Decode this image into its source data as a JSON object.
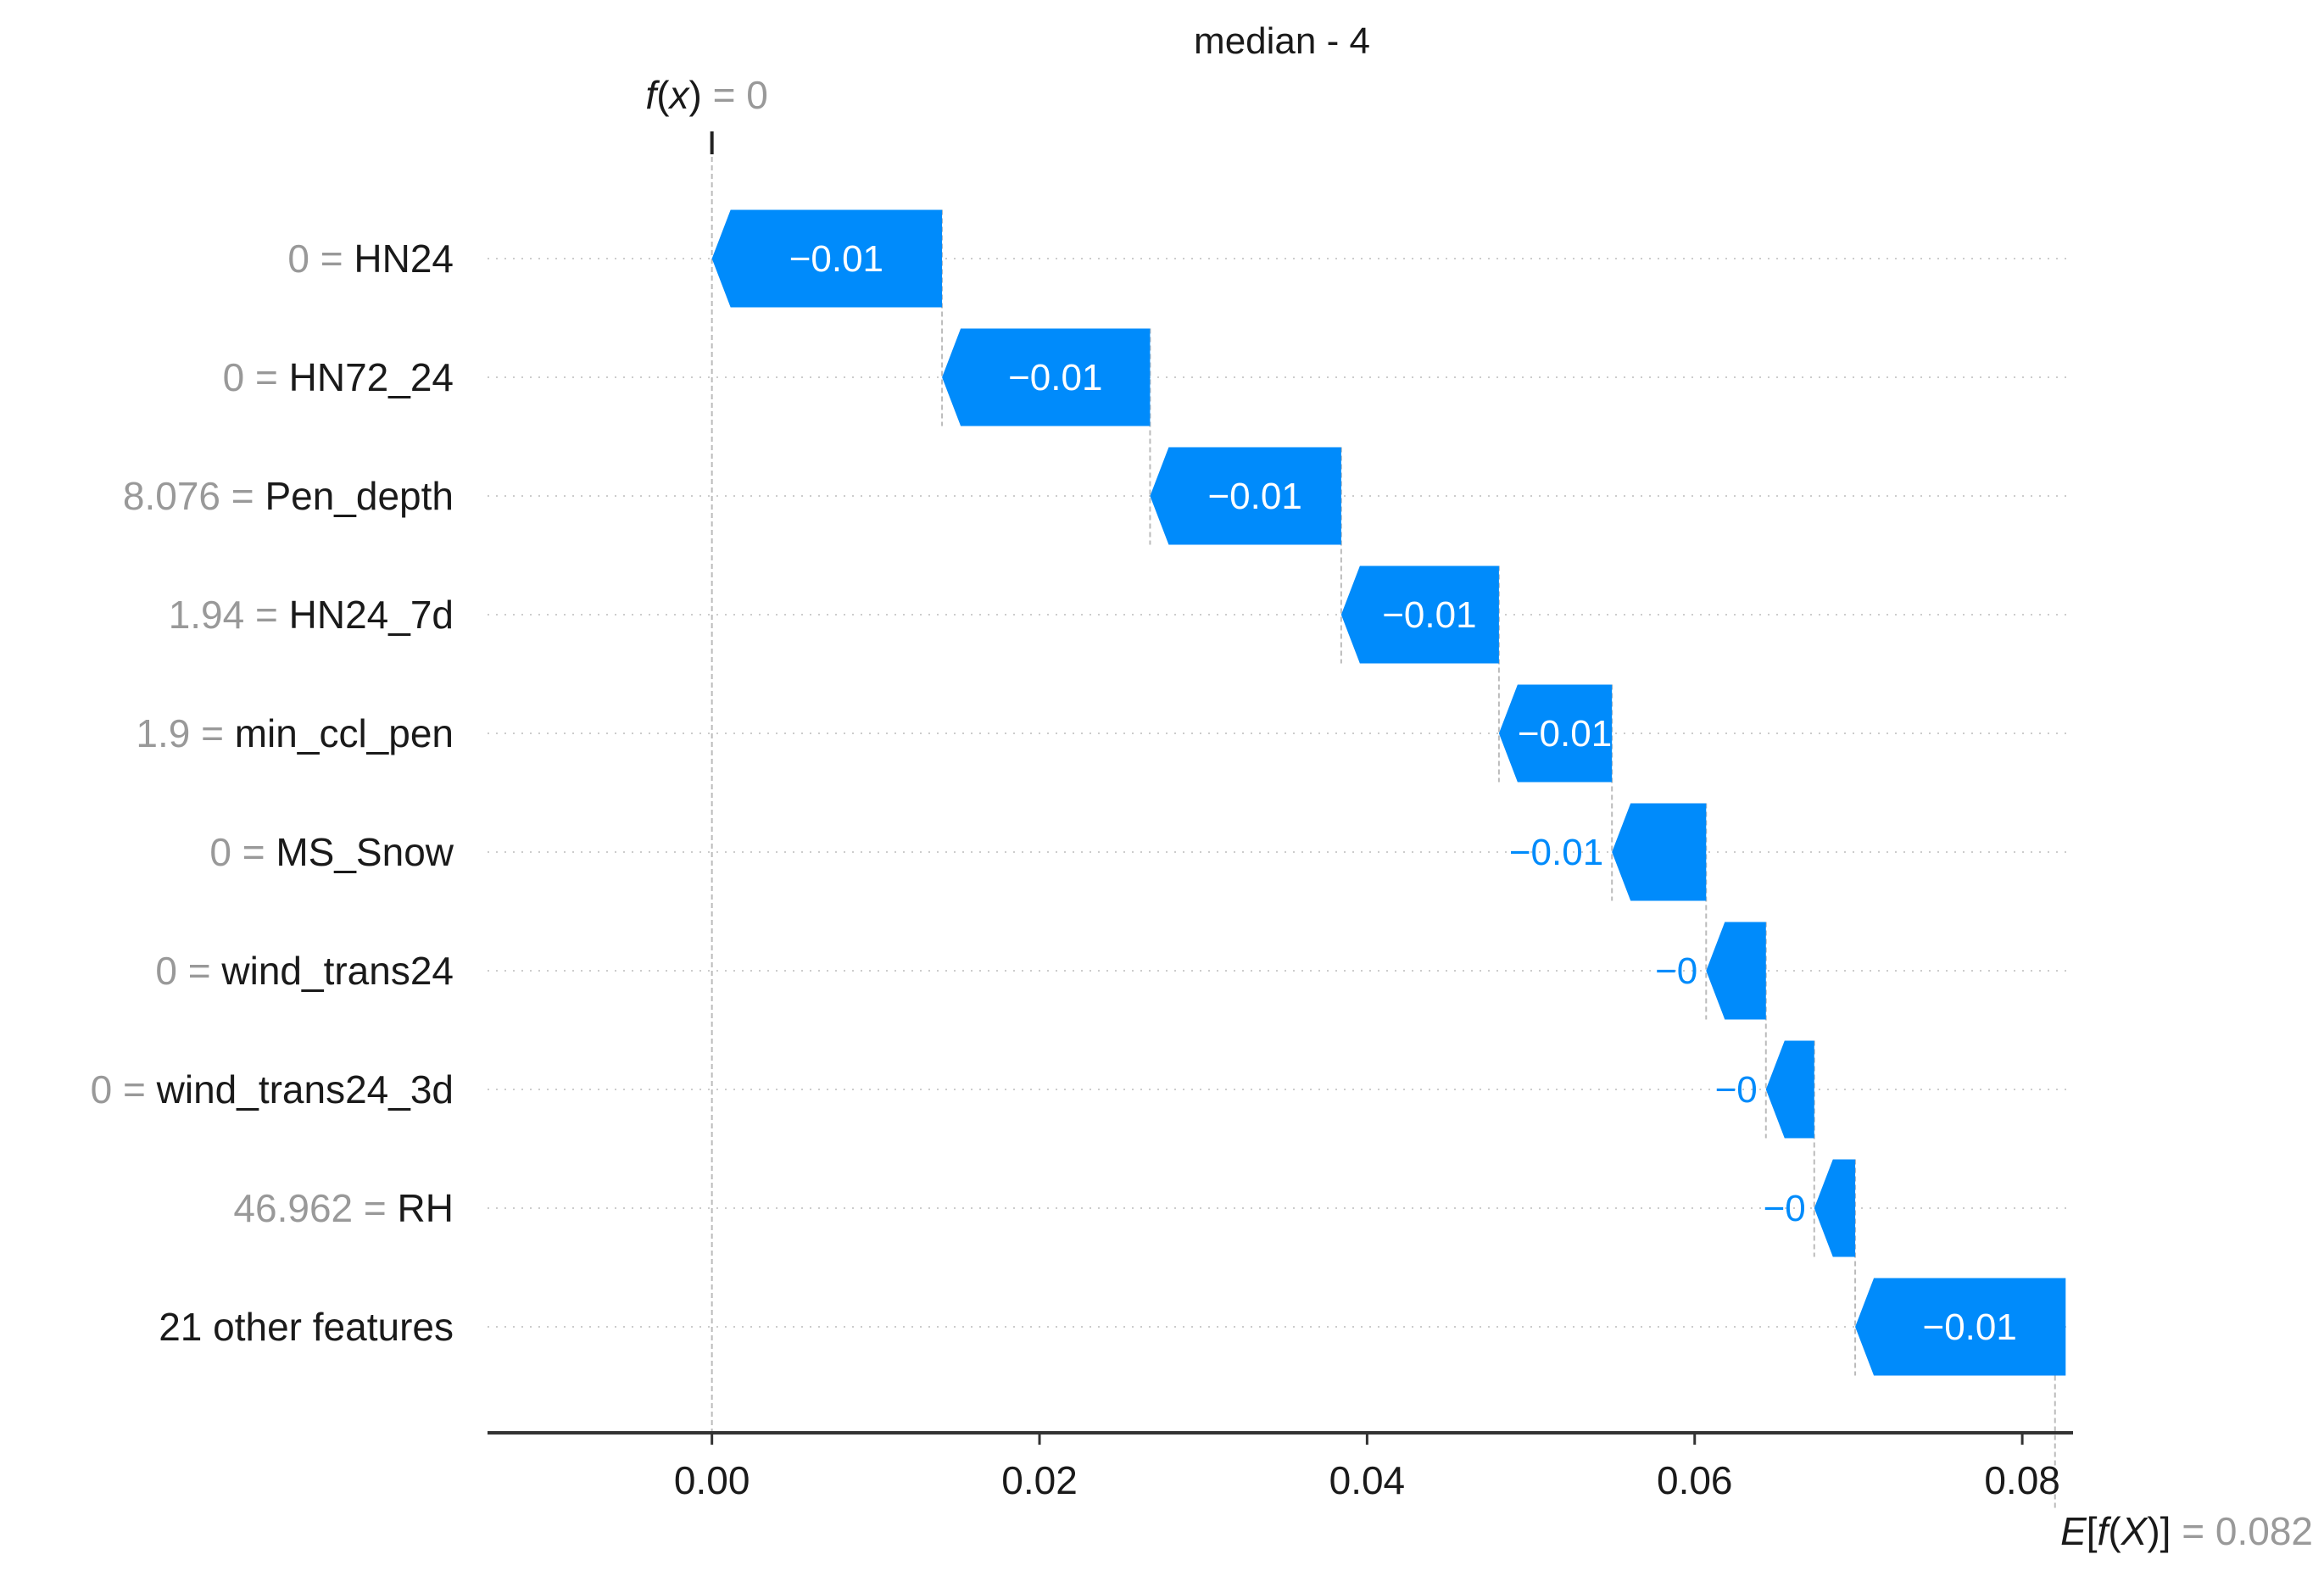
{
  "chart_data": {
    "type": "waterfall",
    "title": "median - 4",
    "fx_label": {
      "func": "f",
      "arg": "x",
      "value": "0"
    },
    "efx_label": {
      "value": "0.082"
    },
    "xlabel": "",
    "ylabel": "",
    "xlim": [
      -0.0137,
      0.0831
    ],
    "xticks": [
      0.0,
      0.02,
      0.04,
      0.06,
      0.08
    ],
    "xtick_labels": [
      "0.00",
      "0.02",
      "0.04",
      "0.06",
      "0.08"
    ],
    "grid": false,
    "base_value": 0.082,
    "output_value": 0,
    "features": [
      {
        "value": "0",
        "name": "HN24",
        "label": "−0.01",
        "start": 0.01405,
        "end": 0.0
      },
      {
        "value": "0",
        "name": "HN72_24",
        "label": "−0.01",
        "start": 0.02675,
        "end": 0.01405
      },
      {
        "value": "8.076",
        "name": "Pen_depth",
        "label": "−0.01",
        "start": 0.03842,
        "end": 0.02675
      },
      {
        "value": "1.94",
        "name": "HN24_7d",
        "label": "−0.01",
        "start": 0.04805,
        "end": 0.03842
      },
      {
        "value": "1.9",
        "name": "min_ccl_pen",
        "label": "−0.01",
        "start": 0.05495,
        "end": 0.04805
      },
      {
        "value": "0",
        "name": "MS_Snow",
        "label": "−0.01",
        "start": 0.0607,
        "end": 0.05495
      },
      {
        "value": "0",
        "name": "wind_trans24",
        "label": "−0",
        "start": 0.06435,
        "end": 0.0607
      },
      {
        "value": "0",
        "name": "wind_trans24_3d",
        "label": "−0",
        "start": 0.0673,
        "end": 0.06435
      },
      {
        "value": "46.962",
        "name": "RH",
        "label": "−0",
        "start": 0.0698,
        "end": 0.0673
      },
      {
        "value": "",
        "name": "21 other features",
        "label": "−0.01",
        "start": 0.08265,
        "end": 0.0698
      }
    ],
    "colors": {
      "negative": "#008bfb",
      "text_dark": "#1a1a1a",
      "text_grey": "#999999",
      "grid": "#cccccc",
      "axis": "#333333"
    }
  }
}
